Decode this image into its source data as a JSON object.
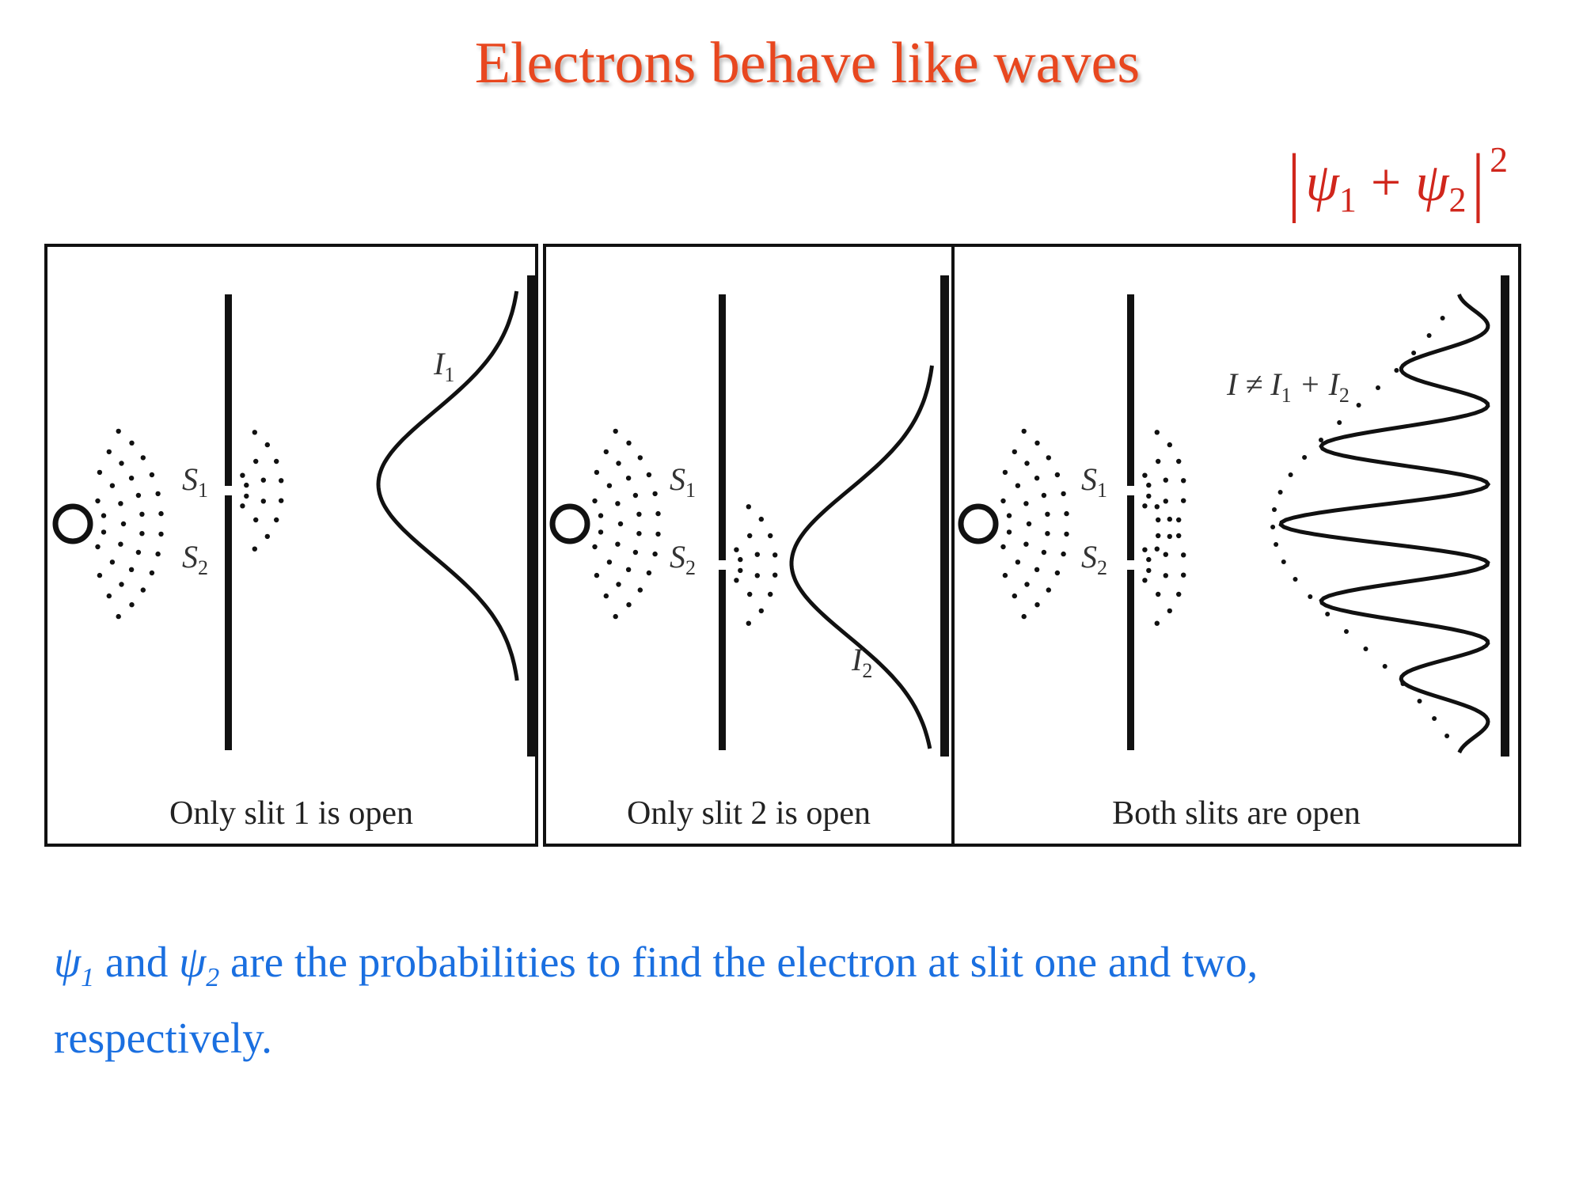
{
  "title": "Electrons behave like waves",
  "formula": {
    "psi": "ψ",
    "one": "1",
    "plus": "+",
    "two": "2",
    "exponent": "2"
  },
  "panels": [
    {
      "caption": "Only slit 1 is open",
      "curve_label": "I",
      "curve_sub": "1"
    },
    {
      "caption": "Only slit 2 is open",
      "curve_label": "I",
      "curve_sub": "2"
    },
    {
      "caption": "Both slits are open",
      "curve_label": "I ≠ I",
      "curve_sub": "1",
      "curve_plus": " + I",
      "curve_sub2": "2"
    }
  ],
  "slit_labels": {
    "s": "S",
    "one": "1",
    "two": "2"
  },
  "note": {
    "psi": "ψ",
    "sub1": "1",
    "and": " and ",
    "sub2": "2",
    "rest": " are the probabilities to find the electron at slit one and two,",
    "line2": "respectively."
  },
  "colors": {
    "title": "#e8471f",
    "formula": "#d0261c",
    "note": "#1a6fe0",
    "ink": "#111111"
  }
}
